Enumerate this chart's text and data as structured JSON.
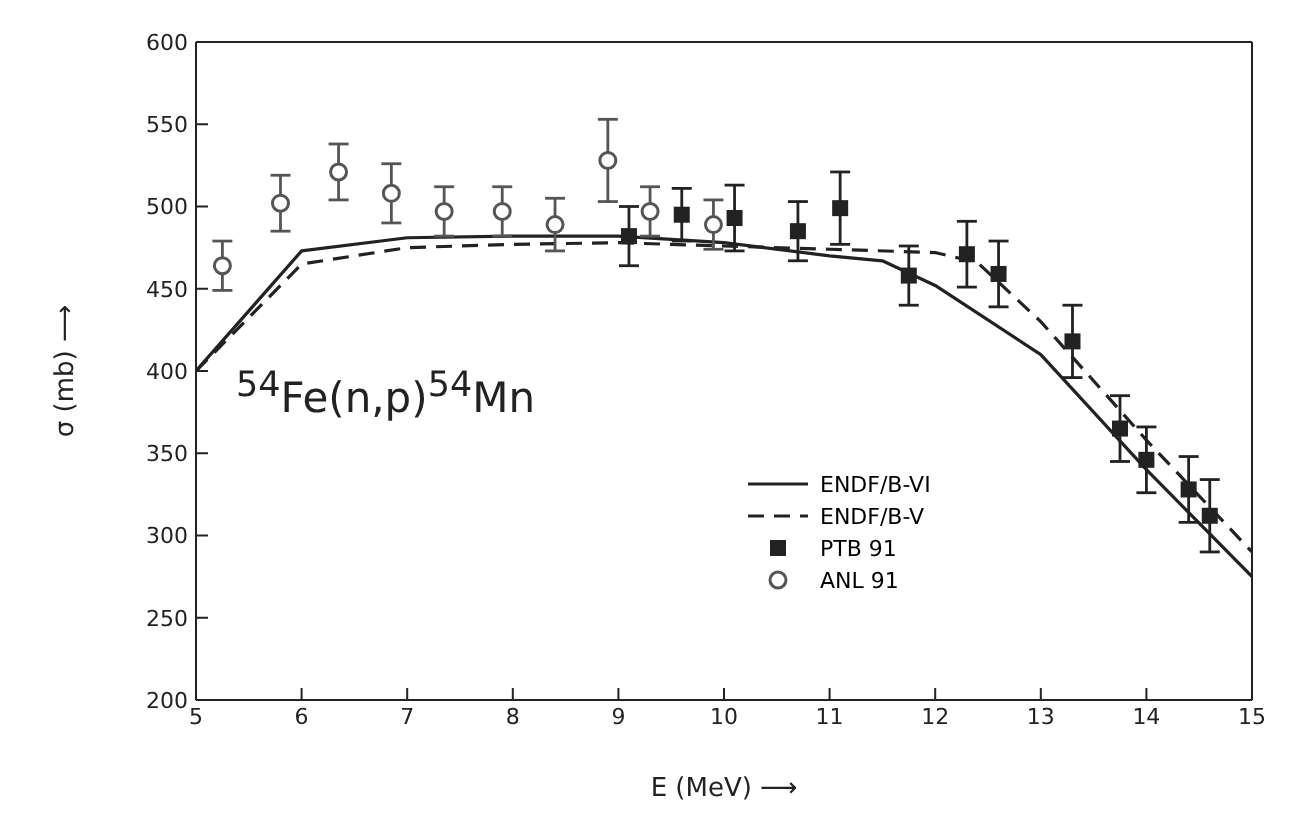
{
  "chart_data": {
    "type": "line",
    "xlabel": "E  (MeV)  ⟶",
    "ylabel": "σ  (mb)  ⟶",
    "annotations": [
      "$^{54}$Fe(n,p)$^{54}$Mn"
    ],
    "xlim": [
      5,
      15
    ],
    "xticks": [
      5,
      6,
      7,
      8,
      9,
      10,
      11,
      12,
      13,
      14,
      15
    ],
    "ylim": [
      200,
      600
    ],
    "yticks": [
      200,
      250,
      300,
      350,
      400,
      450,
      500,
      550,
      600
    ],
    "grid": false,
    "legend": "bottom right",
    "series": [
      {
        "name": "ENDF/B-VI",
        "color": "#222222",
        "line_style": "solid",
        "marker": "none",
        "x": [
          5,
          6,
          7,
          8,
          9,
          10,
          11,
          11.5,
          12,
          13,
          14,
          15
        ],
        "values": [
          400,
          473,
          481,
          482,
          482,
          478,
          470,
          467,
          452,
          410,
          340,
          275
        ]
      },
      {
        "name": "ENDF/B-V",
        "color": "#222222",
        "line_style": "dashed",
        "marker": "none",
        "x": [
          5,
          6,
          7,
          8,
          9,
          10,
          11,
          12,
          12.4,
          13,
          14,
          15
        ],
        "values": [
          400,
          465,
          475,
          477,
          478,
          476,
          474,
          472,
          466,
          430,
          358,
          290
        ]
      },
      {
        "name": "PTB 91",
        "type": "scatter",
        "color": "#222222",
        "marker": "square",
        "x": [
          9.1,
          9.6,
          10.1,
          10.7,
          11.1,
          11.75,
          12.3,
          12.6,
          13.3,
          13.75,
          14.0,
          14.4,
          14.6
        ],
        "values": [
          482,
          495,
          493,
          485,
          499,
          458,
          471,
          459,
          418,
          365,
          346,
          328,
          312
        ],
        "errors": [
          18,
          16,
          20,
          18,
          22,
          18,
          20,
          20,
          22,
          20,
          20,
          20,
          22
        ]
      },
      {
        "name": "ANL 91",
        "type": "scatter",
        "color": "#555555",
        "marker": "circle",
        "x": [
          5.25,
          5.8,
          6.35,
          6.85,
          7.35,
          7.9,
          8.4,
          8.9,
          9.3,
          9.9
        ],
        "values": [
          464,
          502,
          521,
          508,
          497,
          497,
          489,
          528,
          497,
          489
        ],
        "errors": [
          15,
          17,
          17,
          18,
          15,
          15,
          16,
          25,
          15,
          15
        ]
      }
    ]
  }
}
